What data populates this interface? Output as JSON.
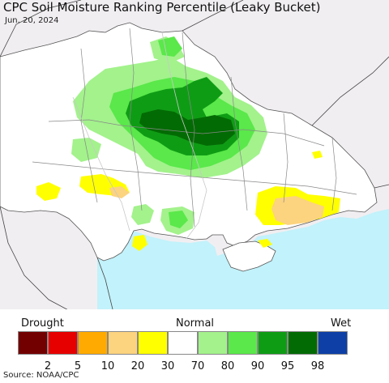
{
  "header": {
    "title": "CPC Soil Moisture Ranking Percentile (Leaky Bucket)",
    "date": "Jun. 20, 2024"
  },
  "map": {
    "region": "Ukraine and surroundings",
    "colors": {
      "land_outside": "#f1eef1",
      "land_main": "#ffffff",
      "sea": "#c2f2fb",
      "border": "#555555",
      "river": "#bbbbbb"
    }
  },
  "legend": {
    "left_label": "Drought",
    "center_label": "Normal",
    "right_label": "Wet",
    "swatches": [
      {
        "color": "#730000"
      },
      {
        "color": "#e60000"
      },
      {
        "color": "#ffaa00"
      },
      {
        "color": "#fcd37f"
      },
      {
        "color": "#ffff00"
      },
      {
        "color": "#ffffff"
      },
      {
        "color": "#a3f28c"
      },
      {
        "color": "#5ae84a"
      },
      {
        "color": "#0f9c15"
      },
      {
        "color": "#036b04"
      },
      {
        "color": "#0d3fa6"
      }
    ],
    "ticks": [
      "2",
      "5",
      "10",
      "20",
      "30",
      "70",
      "80",
      "90",
      "95",
      "98"
    ]
  },
  "footer": {
    "source": "Source: NOAA/CPC"
  }
}
